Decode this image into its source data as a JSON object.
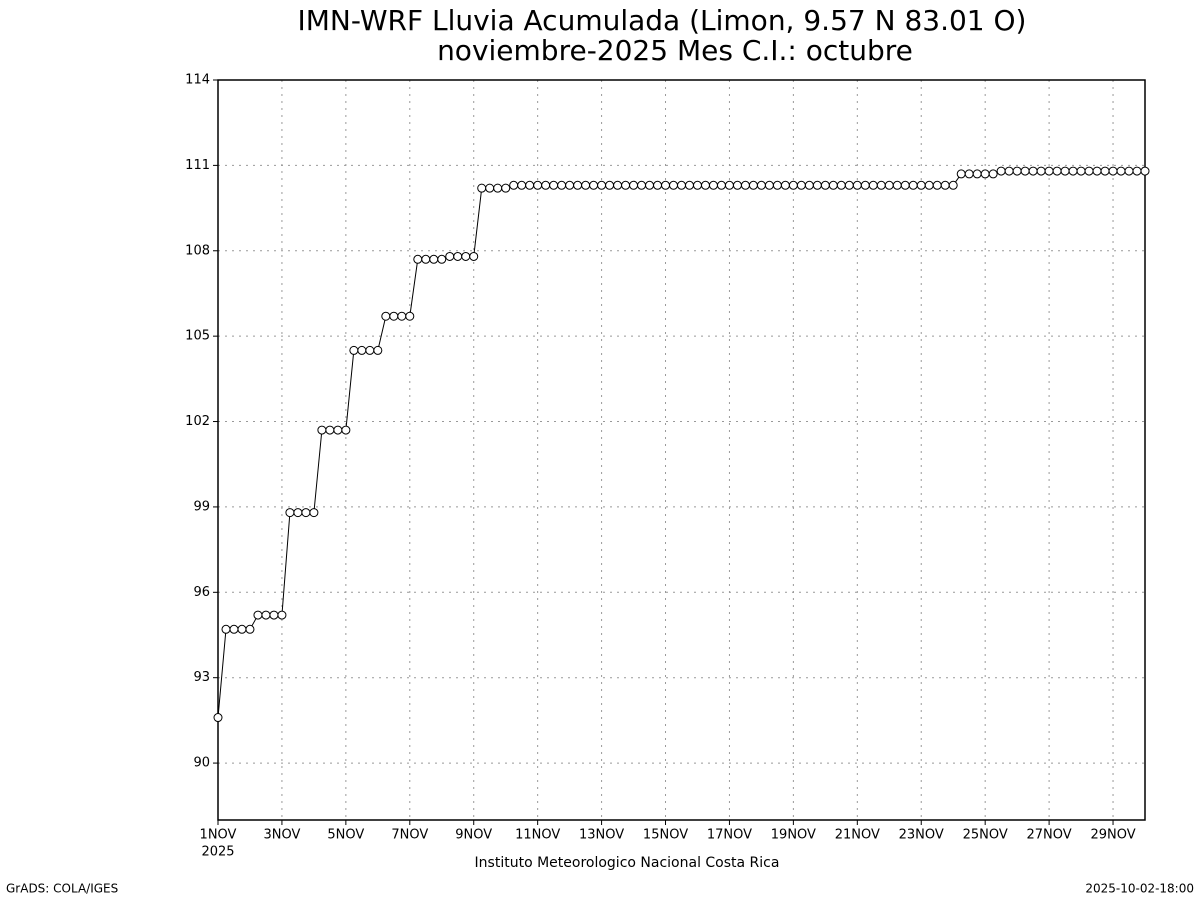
{
  "chart_data": {
    "type": "line",
    "title": "IMN-WRF  Lluvia Acumulada (Limon, 9.57  N 83.01  O)",
    "subtitle": "noviembre-2025 Mes C.I.: octubre",
    "year_label": "2025",
    "credit": "Instituto Meteorologico Nacional Costa Rica",
    "source": "GrADS: COLA/IGES",
    "timestamp": "2025-10-02-18:00",
    "grid": true,
    "xlim": [
      1,
      30
    ],
    "ylim": [
      88,
      114
    ],
    "xticks": [
      {
        "value": 1,
        "label": "1NOV"
      },
      {
        "value": 3,
        "label": "3NOV"
      },
      {
        "value": 5,
        "label": "5NOV"
      },
      {
        "value": 7,
        "label": "7NOV"
      },
      {
        "value": 9,
        "label": "9NOV"
      },
      {
        "value": 11,
        "label": "11NOV"
      },
      {
        "value": 13,
        "label": "13NOV"
      },
      {
        "value": 15,
        "label": "15NOV"
      },
      {
        "value": 17,
        "label": "17NOV"
      },
      {
        "value": 19,
        "label": "19NOV"
      },
      {
        "value": 21,
        "label": "21NOV"
      },
      {
        "value": 23,
        "label": "23NOV"
      },
      {
        "value": 25,
        "label": "25NOV"
      },
      {
        "value": 27,
        "label": "27NOV"
      },
      {
        "value": 29,
        "label": "29NOV"
      }
    ],
    "yticks": [
      90,
      93,
      96,
      99,
      102,
      105,
      108,
      111,
      114
    ],
    "color": "#000000",
    "marker_fill": "#ffffff",
    "x": [
      1,
      1.25,
      1.5,
      1.75,
      2,
      2.25,
      2.5,
      2.75,
      3,
      3.25,
      3.5,
      3.75,
      4,
      4.25,
      4.5,
      4.75,
      5,
      5.25,
      5.5,
      5.75,
      6,
      6.25,
      6.5,
      6.75,
      7,
      7.25,
      7.5,
      7.75,
      8,
      8.25,
      8.5,
      8.75,
      9,
      9.25,
      9.5,
      9.75,
      10,
      10.25,
      10.5,
      10.75,
      11,
      11.25,
      11.5,
      11.75,
      12,
      12.25,
      12.5,
      12.75,
      13,
      13.25,
      13.5,
      13.75,
      14,
      14.25,
      14.5,
      14.75,
      15,
      15.25,
      15.5,
      15.75,
      16,
      16.25,
      16.5,
      16.75,
      17,
      17.25,
      17.5,
      17.75,
      18,
      18.25,
      18.5,
      18.75,
      19,
      19.25,
      19.5,
      19.75,
      20,
      20.25,
      20.5,
      20.75,
      21,
      21.25,
      21.5,
      21.75,
      22,
      22.25,
      22.5,
      22.75,
      23,
      23.25,
      23.5,
      23.75,
      24,
      24.25,
      24.5,
      24.75,
      25,
      25.25,
      25.5,
      25.75,
      26,
      26.25,
      26.5,
      26.75,
      27,
      27.25,
      27.5,
      27.75,
      28,
      28.25,
      28.5,
      28.75,
      29,
      29.25,
      29.5,
      29.75,
      30
    ],
    "values": [
      91.6,
      94.7,
      94.7,
      94.7,
      94.7,
      95.2,
      95.2,
      95.2,
      95.2,
      98.8,
      98.8,
      98.8,
      98.8,
      101.7,
      101.7,
      101.7,
      101.7,
      104.5,
      104.5,
      104.5,
      104.5,
      105.7,
      105.7,
      105.7,
      105.7,
      107.7,
      107.7,
      107.7,
      107.7,
      107.8,
      107.8,
      107.8,
      107.8,
      110.2,
      110.2,
      110.2,
      110.2,
      110.3,
      110.3,
      110.3,
      110.3,
      110.3,
      110.3,
      110.3,
      110.3,
      110.3,
      110.3,
      110.3,
      110.3,
      110.3,
      110.3,
      110.3,
      110.3,
      110.3,
      110.3,
      110.3,
      110.3,
      110.3,
      110.3,
      110.3,
      110.3,
      110.3,
      110.3,
      110.3,
      110.3,
      110.3,
      110.3,
      110.3,
      110.3,
      110.3,
      110.3,
      110.3,
      110.3,
      110.3,
      110.3,
      110.3,
      110.3,
      110.3,
      110.3,
      110.3,
      110.3,
      110.3,
      110.3,
      110.3,
      110.3,
      110.3,
      110.3,
      110.3,
      110.3,
      110.3,
      110.3,
      110.3,
      110.3,
      110.7,
      110.7,
      110.7,
      110.7,
      110.7,
      110.8,
      110.8,
      110.8,
      110.8,
      110.8,
      110.8,
      110.8,
      110.8,
      110.8,
      110.8,
      110.8,
      110.8,
      110.8,
      110.8,
      110.8,
      110.8,
      110.8,
      110.8,
      110.8
    ]
  }
}
